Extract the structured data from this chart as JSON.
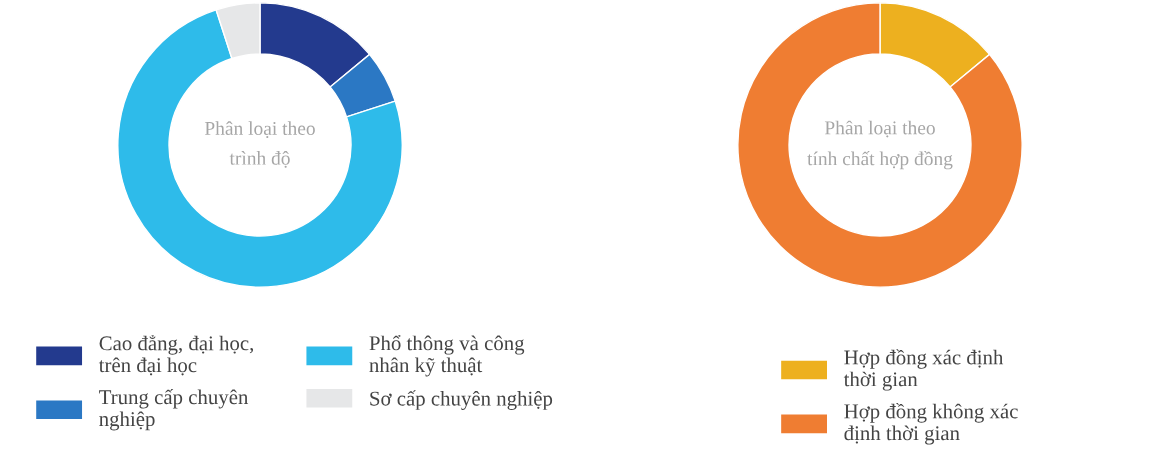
{
  "chart_data": [
    {
      "type": "donut",
      "title": "Phân loại theo trình độ",
      "categories": [
        "Cao đẳng, đại học, trên đại học",
        "Trung cấp chuyên nghiệp",
        "Phổ thông và công nhân kỹ thuật",
        "Sơ cấp chuyên nghiệp"
      ],
      "values": [
        14,
        6,
        75,
        5
      ],
      "colors": [
        "#233a8e",
        "#2b78c4",
        "#2ebbea",
        "#e6e7e8"
      ],
      "legend": "bottom"
    },
    {
      "type": "donut",
      "title": "Phân loại theo tính chất hợp đồng",
      "categories": [
        "Hợp đồng xác định thời gian",
        "Hợp đồng không xác định thời gian"
      ],
      "values": [
        14,
        86
      ],
      "colors": [
        "#edb01f",
        "#ef7d32"
      ],
      "legend": "bottom"
    }
  ]
}
